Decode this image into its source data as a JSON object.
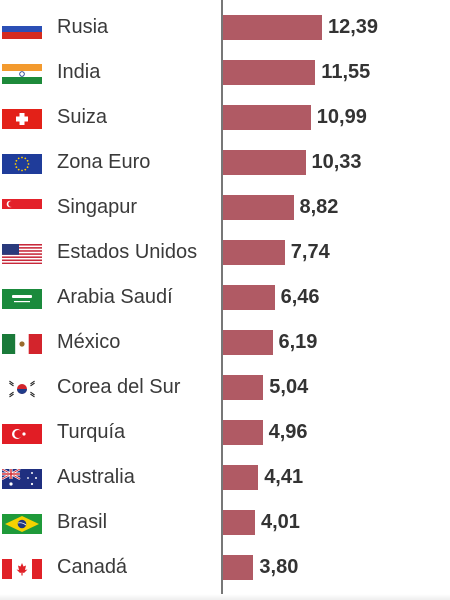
{
  "chart_data": {
    "type": "bar",
    "orientation": "horizontal",
    "categories": [
      "Rusia",
      "India",
      "Suiza",
      "Zona Euro",
      "Singapur",
      "Estados Unidos",
      "Arabia Saudí",
      "México",
      "Corea del Sur",
      "Turquía",
      "Australia",
      "Brasil",
      "Canadá"
    ],
    "values": [
      12.39,
      11.55,
      10.99,
      10.33,
      8.82,
      7.74,
      6.46,
      6.19,
      5.04,
      4.96,
      4.41,
      4.01,
      3.8
    ],
    "value_labels": [
      "12,39",
      "11,55",
      "10,99",
      "10,33",
      "8,82",
      "7,74",
      "6,46",
      "6,19",
      "5,04",
      "4,96",
      "4,41",
      "4,01",
      "3,80"
    ],
    "flags": [
      "russia-flag-icon",
      "india-flag-icon",
      "switzerland-flag-icon",
      "eu-flag-icon",
      "singapore-flag-icon",
      "usa-flag-icon",
      "saudi-arabia-flag-icon",
      "mexico-flag-icon",
      "south-korea-flag-icon",
      "turkey-flag-icon",
      "australia-flag-icon",
      "brazil-flag-icon",
      "canada-flag-icon"
    ],
    "bar_color": "#b05a64",
    "grid": false
  }
}
